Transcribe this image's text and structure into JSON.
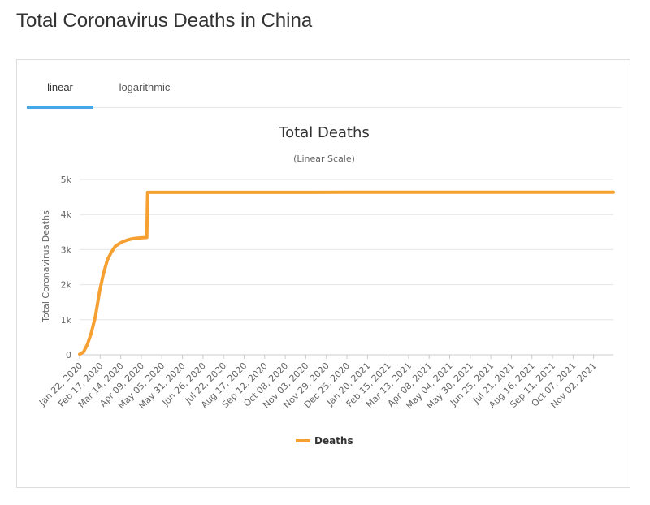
{
  "page": {
    "title": "Total Coronavirus Deaths in China"
  },
  "tabs": [
    {
      "label": "linear",
      "active": true
    },
    {
      "label": "logarithmic",
      "active": false
    }
  ],
  "colors": {
    "series": "#f5a031",
    "tab_accent": "#45a6e8",
    "grid": "#e6e6e6"
  },
  "chart_data": {
    "type": "line",
    "title": "Total Deaths",
    "subtitle": "(Linear Scale)",
    "xlabel": "",
    "ylabel": "Total Coronavirus Deaths",
    "ylim": [
      0,
      5000
    ],
    "yticks": [
      0,
      1000,
      2000,
      3000,
      4000,
      5000
    ],
    "ytick_labels": [
      "0",
      "1k",
      "2k",
      "3k",
      "4k",
      "5k"
    ],
    "xlim": [
      "2020-01-22",
      "2021-11-27"
    ],
    "xticks": [
      "2020-01-22",
      "2020-02-17",
      "2020-03-14",
      "2020-04-09",
      "2020-05-05",
      "2020-05-31",
      "2020-06-26",
      "2020-07-22",
      "2020-08-17",
      "2020-09-12",
      "2020-10-08",
      "2020-11-03",
      "2020-11-29",
      "2020-12-25",
      "2021-01-20",
      "2021-02-15",
      "2021-03-13",
      "2021-04-08",
      "2021-05-04",
      "2021-05-30",
      "2021-06-25",
      "2021-07-21",
      "2021-08-16",
      "2021-09-11",
      "2021-10-07",
      "2021-11-02"
    ],
    "xtick_labels": [
      "Jan 22, 2020",
      "Feb 17, 2020",
      "Mar 14, 2020",
      "Apr 09, 2020",
      "May 05, 2020",
      "May 31, 2020",
      "Jun 26, 2020",
      "Jul 22, 2020",
      "Aug 17, 2020",
      "Sep 12, 2020",
      "Oct 08, 2020",
      "Nov 03, 2020",
      "Nov 29, 2020",
      "Dec 25, 2020",
      "Jan 20, 2021",
      "Feb 15, 2021",
      "Mar 13, 2021",
      "Apr 08, 2021",
      "May 04, 2021",
      "May 30, 2021",
      "Jun 25, 2021",
      "Jul 21, 2021",
      "Aug 16, 2021",
      "Sep 11, 2021",
      "Oct 07, 2021",
      "Nov 02, 2021"
    ],
    "grid": true,
    "legend": "bottom-center",
    "series": [
      {
        "name": "Deaths",
        "x": [
          "2020-01-22",
          "2020-01-27",
          "2020-02-01",
          "2020-02-06",
          "2020-02-11",
          "2020-02-16",
          "2020-02-21",
          "2020-02-26",
          "2020-03-02",
          "2020-03-07",
          "2020-03-12",
          "2020-03-17",
          "2020-03-22",
          "2020-03-27",
          "2020-04-01",
          "2020-04-06",
          "2020-04-11",
          "2020-04-16",
          "2020-04-17",
          "2020-05-05",
          "2020-12-25",
          "2021-11-27"
        ],
        "y": [
          17,
          80,
          300,
          640,
          1100,
          1770,
          2300,
          2700,
          2920,
          3090,
          3170,
          3230,
          3270,
          3300,
          3320,
          3330,
          3340,
          3345,
          4632,
          4633,
          4634,
          4636
        ]
      }
    ]
  }
}
